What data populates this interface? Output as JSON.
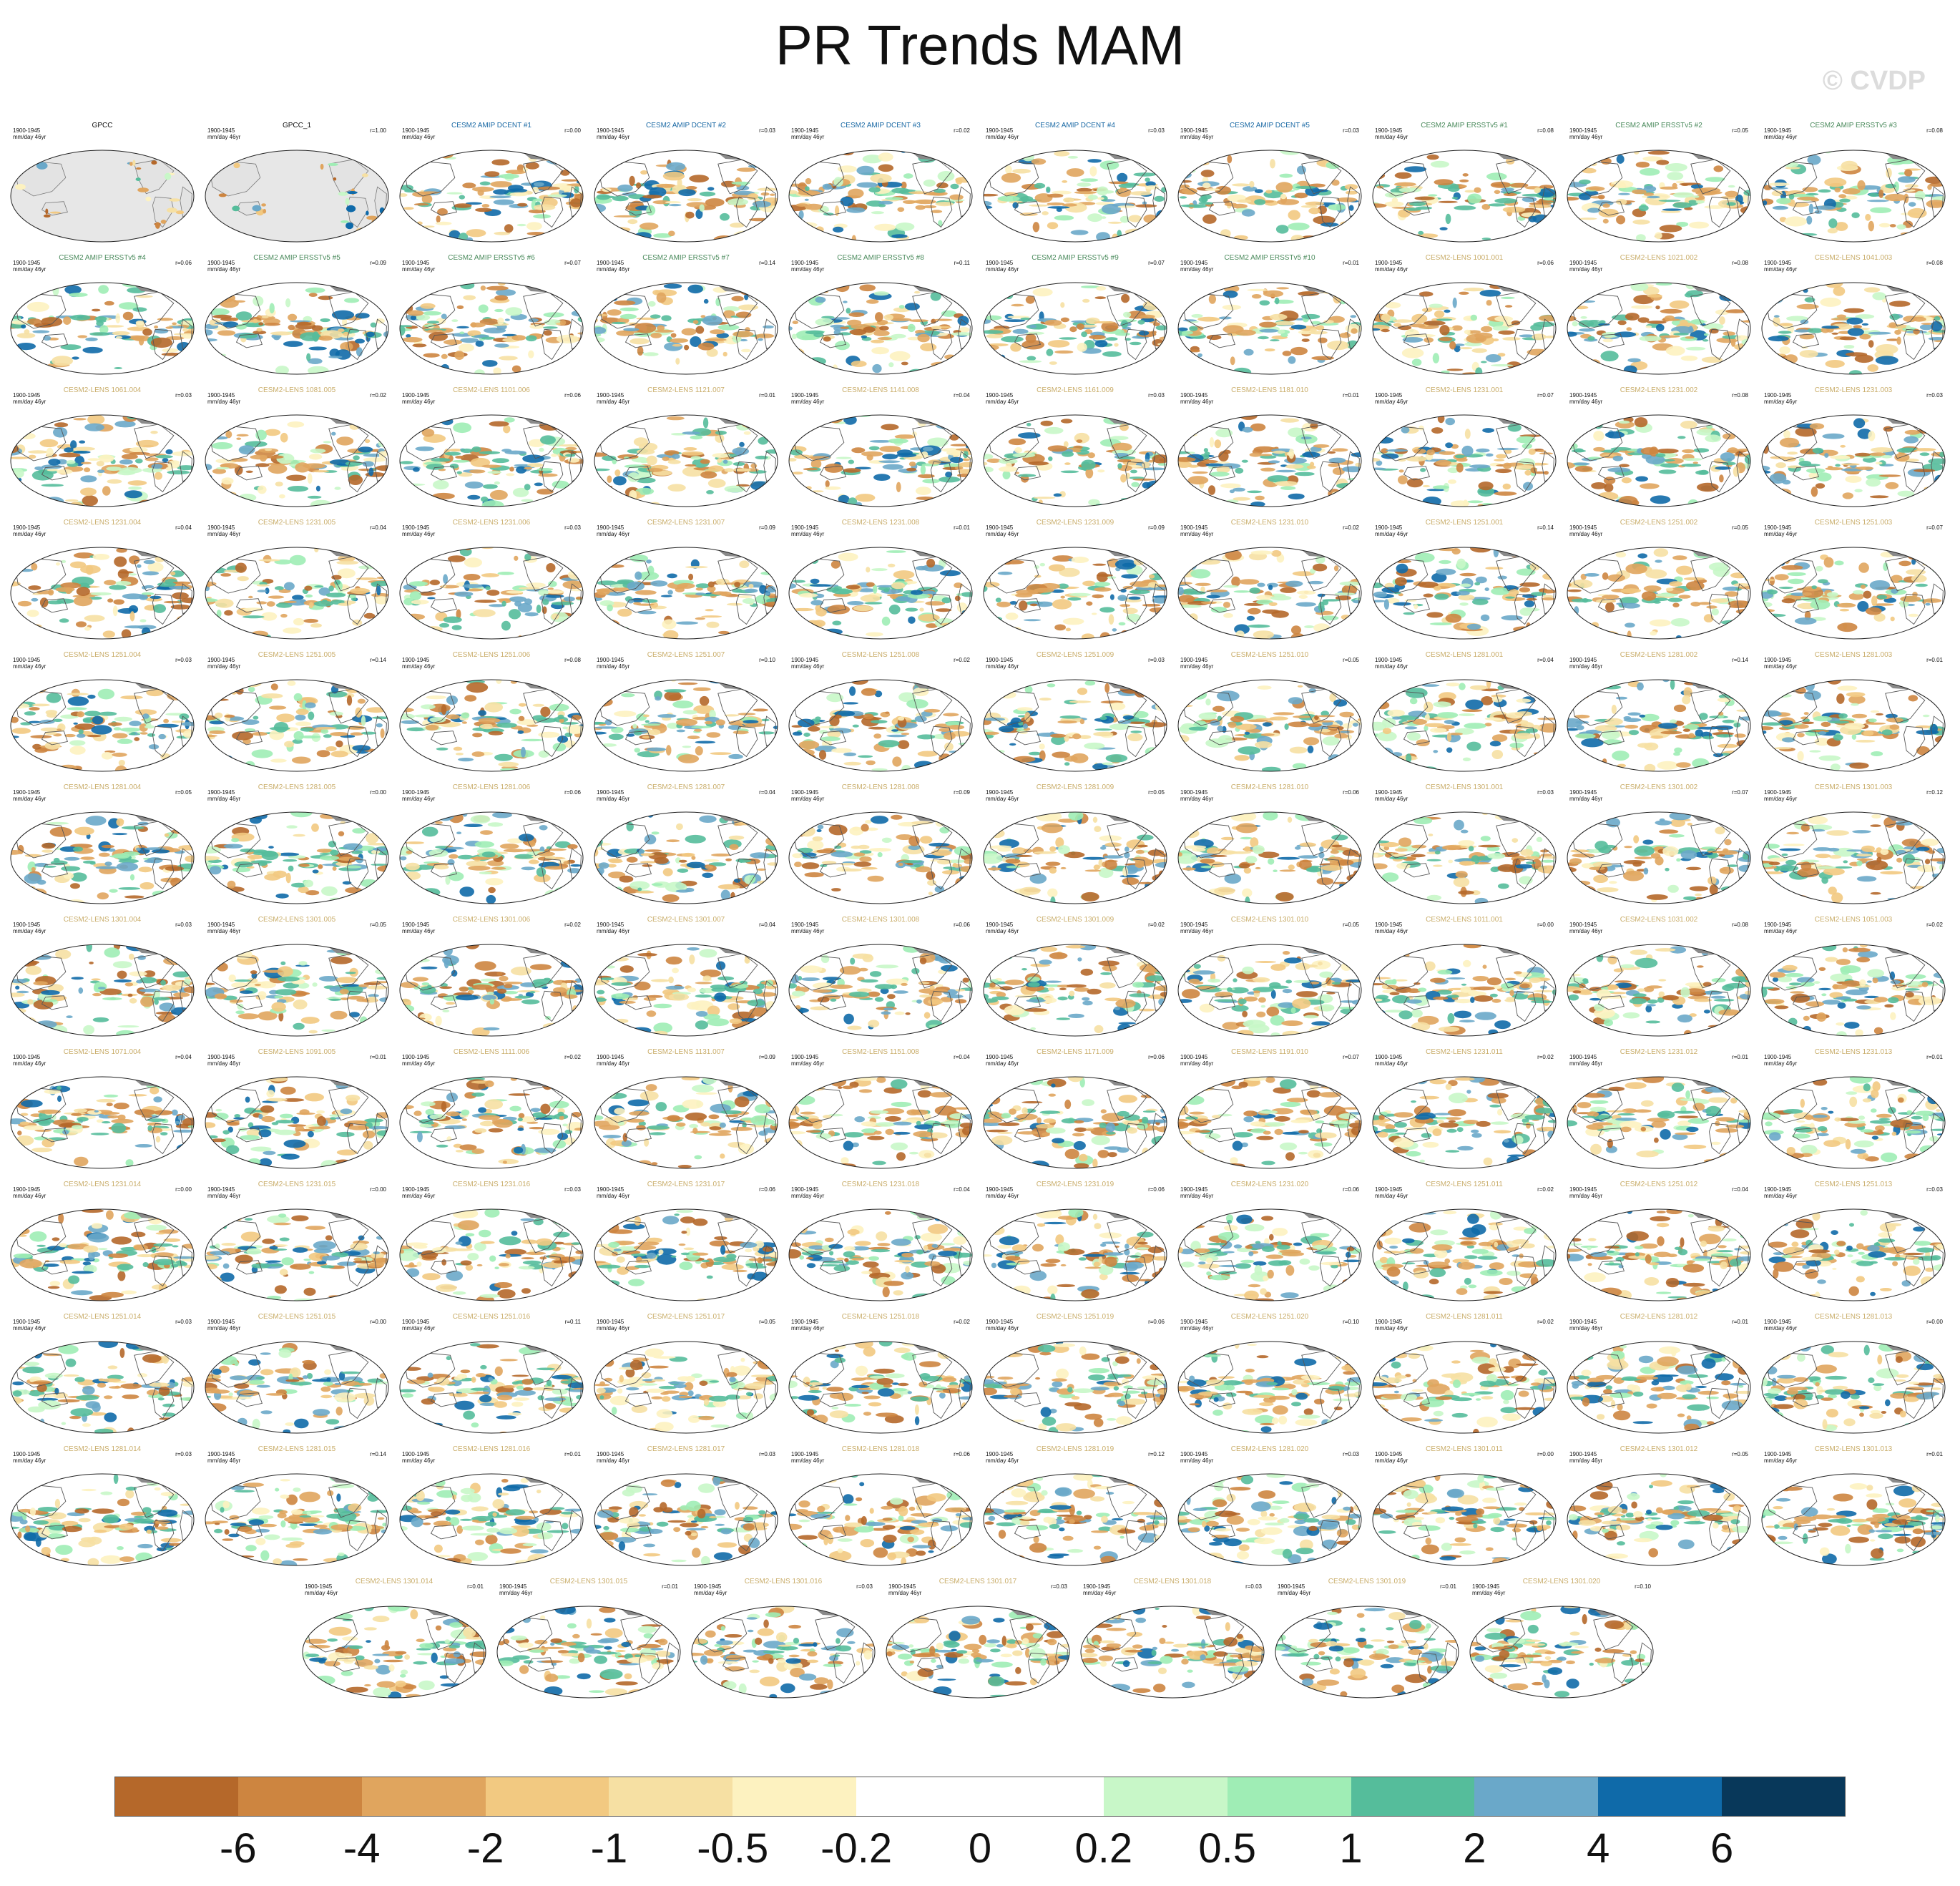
{
  "figure": {
    "title": "PR Trends MAM",
    "watermark": "© CVDP",
    "common_period": "1900-1945",
    "common_units": "mm/day 46yr",
    "title_colors": {
      "obs": "#111111",
      "dcent": "#1b6aa5",
      "ersst": "#4a8a5c",
      "lens": "#c9ad6a"
    },
    "panels": [
      {
        "title": "GPCC",
        "group": "obs",
        "corr": "",
        "style": "obs"
      },
      {
        "title": "GPCC_1",
        "group": "obs",
        "corr": "r=1.00",
        "style": "obs"
      },
      {
        "title": "CESM2 AMIP DCENT #1",
        "group": "dcent",
        "corr": "r=0.00"
      },
      {
        "title": "CESM2 AMIP DCENT #2",
        "group": "dcent",
        "corr": "r=0.03"
      },
      {
        "title": "CESM2 AMIP DCENT #3",
        "group": "dcent",
        "corr": "r=0.02"
      },
      {
        "title": "CESM2 AMIP DCENT #4",
        "group": "dcent",
        "corr": "r=0.03"
      },
      {
        "title": "CESM2 AMIP DCENT #5",
        "group": "dcent",
        "corr": "r=0.03"
      },
      {
        "title": "CESM2 AMIP ERSSTv5 #1",
        "group": "ersst",
        "corr": "r=0.08"
      },
      {
        "title": "CESM2 AMIP ERSSTv5 #2",
        "group": "ersst",
        "corr": "r=0.05"
      },
      {
        "title": "CESM2 AMIP ERSSTv5 #3",
        "group": "ersst",
        "corr": "r=0.08"
      },
      {
        "title": "CESM2 AMIP ERSSTv5 #4",
        "group": "ersst",
        "corr": "r=0.06"
      },
      {
        "title": "CESM2 AMIP ERSSTv5 #5",
        "group": "ersst",
        "corr": "r=0.09"
      },
      {
        "title": "CESM2 AMIP ERSSTv5 #6",
        "group": "ersst",
        "corr": "r=0.07"
      },
      {
        "title": "CESM2 AMIP ERSSTv5 #7",
        "group": "ersst",
        "corr": "r=0.14"
      },
      {
        "title": "CESM2 AMIP ERSSTv5 #8",
        "group": "ersst",
        "corr": "r=0.11"
      },
      {
        "title": "CESM2 AMIP ERSSTv5 #9",
        "group": "ersst",
        "corr": "r=0.07"
      },
      {
        "title": "CESM2 AMIP ERSSTv5 #10",
        "group": "ersst",
        "corr": "r=0.01"
      },
      {
        "title": "CESM2-LENS 1001.001",
        "group": "lens",
        "corr": "r=0.06"
      },
      {
        "title": "CESM2-LENS 1021.002",
        "group": "lens",
        "corr": "r=0.08"
      },
      {
        "title": "CESM2-LENS 1041.003",
        "group": "lens",
        "corr": "r=0.08"
      },
      {
        "title": "CESM2-LENS 1061.004",
        "group": "lens",
        "corr": "r=0.03"
      },
      {
        "title": "CESM2-LENS 1081.005",
        "group": "lens",
        "corr": "r=0.02"
      },
      {
        "title": "CESM2-LENS 1101.006",
        "group": "lens",
        "corr": "r=0.06"
      },
      {
        "title": "CESM2-LENS 1121.007",
        "group": "lens",
        "corr": "r=0.01"
      },
      {
        "title": "CESM2-LENS 1141.008",
        "group": "lens",
        "corr": "r=0.04"
      },
      {
        "title": "CESM2-LENS 1161.009",
        "group": "lens",
        "corr": "r=0.03"
      },
      {
        "title": "CESM2-LENS 1181.010",
        "group": "lens",
        "corr": "r=0.01"
      },
      {
        "title": "CESM2-LENS 1231.001",
        "group": "lens",
        "corr": "r=0.07"
      },
      {
        "title": "CESM2-LENS 1231.002",
        "group": "lens",
        "corr": "r=0.08"
      },
      {
        "title": "CESM2-LENS 1231.003",
        "group": "lens",
        "corr": "r=0.03"
      },
      {
        "title": "CESM2-LENS 1231.004",
        "group": "lens",
        "corr": "r=0.04"
      },
      {
        "title": "CESM2-LENS 1231.005",
        "group": "lens",
        "corr": "r=0.04"
      },
      {
        "title": "CESM2-LENS 1231.006",
        "group": "lens",
        "corr": "r=0.03"
      },
      {
        "title": "CESM2-LENS 1231.007",
        "group": "lens",
        "corr": "r=0.09"
      },
      {
        "title": "CESM2-LENS 1231.008",
        "group": "lens",
        "corr": "r=0.01"
      },
      {
        "title": "CESM2-LENS 1231.009",
        "group": "lens",
        "corr": "r=0.09"
      },
      {
        "title": "CESM2-LENS 1231.010",
        "group": "lens",
        "corr": "r=0.02"
      },
      {
        "title": "CESM2-LENS 1251.001",
        "group": "lens",
        "corr": "r=0.14"
      },
      {
        "title": "CESM2-LENS 1251.002",
        "group": "lens",
        "corr": "r=0.05"
      },
      {
        "title": "CESM2-LENS 1251.003",
        "group": "lens",
        "corr": "r=0.07"
      },
      {
        "title": "CESM2-LENS 1251.004",
        "group": "lens",
        "corr": "r=0.03"
      },
      {
        "title": "CESM2-LENS 1251.005",
        "group": "lens",
        "corr": "r=0.14"
      },
      {
        "title": "CESM2-LENS 1251.006",
        "group": "lens",
        "corr": "r=0.08"
      },
      {
        "title": "CESM2-LENS 1251.007",
        "group": "lens",
        "corr": "r=0.10"
      },
      {
        "title": "CESM2-LENS 1251.008",
        "group": "lens",
        "corr": "r=0.02"
      },
      {
        "title": "CESM2-LENS 1251.009",
        "group": "lens",
        "corr": "r=0.03"
      },
      {
        "title": "CESM2-LENS 1251.010",
        "group": "lens",
        "corr": "r=0.05"
      },
      {
        "title": "CESM2-LENS 1281.001",
        "group": "lens",
        "corr": "r=0.04"
      },
      {
        "title": "CESM2-LENS 1281.002",
        "group": "lens",
        "corr": "r=0.14"
      },
      {
        "title": "CESM2-LENS 1281.003",
        "group": "lens",
        "corr": "r=0.01"
      },
      {
        "title": "CESM2-LENS 1281.004",
        "group": "lens",
        "corr": "r=0.05"
      },
      {
        "title": "CESM2-LENS 1281.005",
        "group": "lens",
        "corr": "r=0.00"
      },
      {
        "title": "CESM2-LENS 1281.006",
        "group": "lens",
        "corr": "r=0.06"
      },
      {
        "title": "CESM2-LENS 1281.007",
        "group": "lens",
        "corr": "r=0.04"
      },
      {
        "title": "CESM2-LENS 1281.008",
        "group": "lens",
        "corr": "r=0.09"
      },
      {
        "title": "CESM2-LENS 1281.009",
        "group": "lens",
        "corr": "r=0.05"
      },
      {
        "title": "CESM2-LENS 1281.010",
        "group": "lens",
        "corr": "r=0.06"
      },
      {
        "title": "CESM2-LENS 1301.001",
        "group": "lens",
        "corr": "r=0.03"
      },
      {
        "title": "CESM2-LENS 1301.002",
        "group": "lens",
        "corr": "r=0.07"
      },
      {
        "title": "CESM2-LENS 1301.003",
        "group": "lens",
        "corr": "r=0.12"
      },
      {
        "title": "CESM2-LENS 1301.004",
        "group": "lens",
        "corr": "r=0.03"
      },
      {
        "title": "CESM2-LENS 1301.005",
        "group": "lens",
        "corr": "r=0.05"
      },
      {
        "title": "CESM2-LENS 1301.006",
        "group": "lens",
        "corr": "r=0.02"
      },
      {
        "title": "CESM2-LENS 1301.007",
        "group": "lens",
        "corr": "r=0.04"
      },
      {
        "title": "CESM2-LENS 1301.008",
        "group": "lens",
        "corr": "r=0.06"
      },
      {
        "title": "CESM2-LENS 1301.009",
        "group": "lens",
        "corr": "r=0.02"
      },
      {
        "title": "CESM2-LENS 1301.010",
        "group": "lens",
        "corr": "r=0.05"
      },
      {
        "title": "CESM2-LENS 1011.001",
        "group": "lens",
        "corr": "r=0.00"
      },
      {
        "title": "CESM2-LENS 1031.002",
        "group": "lens",
        "corr": "r=0.08"
      },
      {
        "title": "CESM2-LENS 1051.003",
        "group": "lens",
        "corr": "r=0.02"
      },
      {
        "title": "CESM2-LENS 1071.004",
        "group": "lens",
        "corr": "r=0.04"
      },
      {
        "title": "CESM2-LENS 1091.005",
        "group": "lens",
        "corr": "r=0.01"
      },
      {
        "title": "CESM2-LENS 1111.006",
        "group": "lens",
        "corr": "r=0.02"
      },
      {
        "title": "CESM2-LENS 1131.007",
        "group": "lens",
        "corr": "r=0.09"
      },
      {
        "title": "CESM2-LENS 1151.008",
        "group": "lens",
        "corr": "r=0.04"
      },
      {
        "title": "CESM2-LENS 1171.009",
        "group": "lens",
        "corr": "r=0.06"
      },
      {
        "title": "CESM2-LENS 1191.010",
        "group": "lens",
        "corr": "r=0.07"
      },
      {
        "title": "CESM2-LENS 1231.011",
        "group": "lens",
        "corr": "r=0.02"
      },
      {
        "title": "CESM2-LENS 1231.012",
        "group": "lens",
        "corr": "r=0.01"
      },
      {
        "title": "CESM2-LENS 1231.013",
        "group": "lens",
        "corr": "r=0.01"
      },
      {
        "title": "CESM2-LENS 1231.014",
        "group": "lens",
        "corr": "r=0.00"
      },
      {
        "title": "CESM2-LENS 1231.015",
        "group": "lens",
        "corr": "r=0.00"
      },
      {
        "title": "CESM2-LENS 1231.016",
        "group": "lens",
        "corr": "r=0.03"
      },
      {
        "title": "CESM2-LENS 1231.017",
        "group": "lens",
        "corr": "r=0.06"
      },
      {
        "title": "CESM2-LENS 1231.018",
        "group": "lens",
        "corr": "r=0.04"
      },
      {
        "title": "CESM2-LENS 1231.019",
        "group": "lens",
        "corr": "r=0.06"
      },
      {
        "title": "CESM2-LENS 1231.020",
        "group": "lens",
        "corr": "r=0.06"
      },
      {
        "title": "CESM2-LENS 1251.011",
        "group": "lens",
        "corr": "r=0.02"
      },
      {
        "title": "CESM2-LENS 1251.012",
        "group": "lens",
        "corr": "r=0.04"
      },
      {
        "title": "CESM2-LENS 1251.013",
        "group": "lens",
        "corr": "r=0.03"
      },
      {
        "title": "CESM2-LENS 1251.014",
        "group": "lens",
        "corr": "r=0.03"
      },
      {
        "title": "CESM2-LENS 1251.015",
        "group": "lens",
        "corr": "r=0.00"
      },
      {
        "title": "CESM2-LENS 1251.016",
        "group": "lens",
        "corr": "r=0.11"
      },
      {
        "title": "CESM2-LENS 1251.017",
        "group": "lens",
        "corr": "r=0.05"
      },
      {
        "title": "CESM2-LENS 1251.018",
        "group": "lens",
        "corr": "r=0.02"
      },
      {
        "title": "CESM2-LENS 1251.019",
        "group": "lens",
        "corr": "r=0.06"
      },
      {
        "title": "CESM2-LENS 1251.020",
        "group": "lens",
        "corr": "r=0.10"
      },
      {
        "title": "CESM2-LENS 1281.011",
        "group": "lens",
        "corr": "r=0.02"
      },
      {
        "title": "CESM2-LENS 1281.012",
        "group": "lens",
        "corr": "r=0.01"
      },
      {
        "title": "CESM2-LENS 1281.013",
        "group": "lens",
        "corr": "r=0.00"
      },
      {
        "title": "CESM2-LENS 1281.014",
        "group": "lens",
        "corr": "r=0.03"
      },
      {
        "title": "CESM2-LENS 1281.015",
        "group": "lens",
        "corr": "r=0.14"
      },
      {
        "title": "CESM2-LENS 1281.016",
        "group": "lens",
        "corr": "r=0.01"
      },
      {
        "title": "CESM2-LENS 1281.017",
        "group": "lens",
        "corr": "r=0.03"
      },
      {
        "title": "CESM2-LENS 1281.018",
        "group": "lens",
        "corr": "r=0.06"
      },
      {
        "title": "CESM2-LENS 1281.019",
        "group": "lens",
        "corr": "r=0.12"
      },
      {
        "title": "CESM2-LENS 1281.020",
        "group": "lens",
        "corr": "r=0.03"
      },
      {
        "title": "CESM2-LENS 1301.011",
        "group": "lens",
        "corr": "r=0.00"
      },
      {
        "title": "CESM2-LENS 1301.012",
        "group": "lens",
        "corr": "r=0.05"
      },
      {
        "title": "CESM2-LENS 1301.013",
        "group": "lens",
        "corr": "r=0.01"
      },
      {
        "title": "CESM2-LENS 1301.014",
        "group": "lens",
        "corr": "r=0.01"
      },
      {
        "title": "CESM2-LENS 1301.015",
        "group": "lens",
        "corr": "r=0.01"
      },
      {
        "title": "CESM2-LENS 1301.016",
        "group": "lens",
        "corr": "r=0.03"
      },
      {
        "title": "CESM2-LENS 1301.017",
        "group": "lens",
        "corr": "r=0.03"
      },
      {
        "title": "CESM2-LENS 1301.018",
        "group": "lens",
        "corr": "r=0.03"
      },
      {
        "title": "CESM2-LENS 1301.019",
        "group": "lens",
        "corr": "r=0.01"
      },
      {
        "title": "CESM2-LENS 1301.020",
        "group": "lens",
        "corr": "r=0.10"
      }
    ]
  },
  "colorbar": {
    "colors": [
      "#b5682a",
      "#cd8540",
      "#e0a55e",
      "#f2c981",
      "#f6e0a3",
      "#fdf2c0",
      "#ffffff",
      "#ffffff",
      "#c8f7c8",
      "#9fedb5",
      "#55bd9b",
      "#6aa8c9",
      "#0f6aa9",
      "#08385a"
    ],
    "labels": [
      "-6",
      "-4",
      "-2",
      "-1",
      "-0.5",
      "-0.2",
      "0",
      "0.2",
      "0.5",
      "1",
      "2",
      "4",
      "6"
    ]
  }
}
